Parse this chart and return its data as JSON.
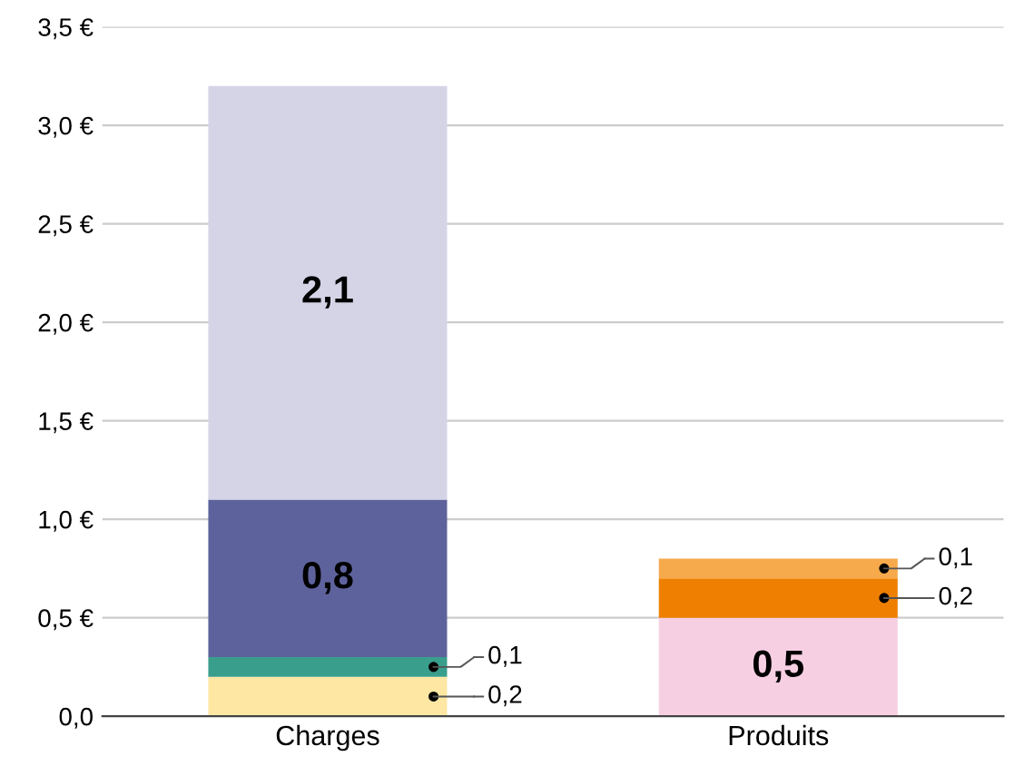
{
  "chart_data": {
    "type": "bar",
    "stacked": true,
    "categories": [
      "Charges",
      "Produits"
    ],
    "series": [
      {
        "colors": [
          "#fde7a3",
          "#f7cfe3"
        ],
        "values": [
          0.2,
          0.5
        ],
        "value_labels": [
          "0,2",
          "0,5"
        ]
      },
      {
        "colors": [
          "#3a9e8c",
          "#ee7f00"
        ],
        "values": [
          0.1,
          0.2
        ],
        "value_labels": [
          "0,1",
          "0,2"
        ]
      },
      {
        "colors": [
          "#5e629c",
          "#f6aa4c"
        ],
        "values": [
          0.8,
          0.1
        ],
        "value_labels": [
          "0,8",
          "0,1"
        ]
      },
      {
        "colors": [
          "#d5d4e7",
          "#d5d4e7"
        ],
        "values": [
          2.1,
          null
        ],
        "value_labels": [
          "2,1",
          null
        ]
      }
    ],
    "ylim": [
      0,
      3.5
    ],
    "yticks": [
      {
        "value": 0,
        "label": "0,0"
      },
      {
        "value": 0.5,
        "label": "0,5 €"
      },
      {
        "value": 1,
        "label": "1,0 €"
      },
      {
        "value": 1.5,
        "label": "1,5 €"
      },
      {
        "value": 2,
        "label": "2,0 €"
      },
      {
        "value": 2.5,
        "label": "2,5 €"
      },
      {
        "value": 3,
        "label": "3,0 €"
      },
      {
        "value": 3.5,
        "label": "3,5 €"
      }
    ],
    "grid": "y",
    "legend": false
  }
}
